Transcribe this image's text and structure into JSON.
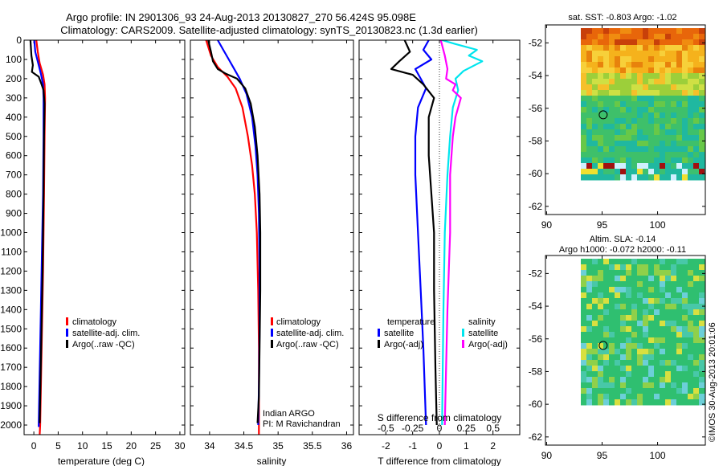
{
  "header": {
    "line1": "Argo profile: IN 2901306_93 24-Aug-2013 20130827_270 56.424S 95.098E",
    "line2": "Climatology: CARS2009. Satellite-adjusted climatology: synTS_20130823.nc (1.3d earlier)"
  },
  "colors": {
    "climatology": "#ff0000",
    "satellite": "#0000ff",
    "argo": "#000000",
    "sat_salinity": "#00e5ee",
    "argo_salinity": "#ff00ff"
  },
  "chart_data": [
    {
      "type": "line",
      "id": "temperature",
      "xlabel": "temperature (deg C)",
      "xticks": [
        0,
        5,
        10,
        15,
        20,
        25,
        30
      ],
      "xlim": [
        -2,
        31
      ],
      "yticks": [
        0,
        100,
        200,
        300,
        400,
        500,
        600,
        700,
        800,
        900,
        1000,
        1100,
        1200,
        1300,
        1400,
        1500,
        1600,
        1700,
        1800,
        1900,
        2000
      ],
      "ylim": [
        2050,
        0
      ],
      "legend": [
        "climatology",
        "satellite-adj. clim.",
        "Argo(..raw -QC)"
      ],
      "series": [
        {
          "name": "climatology",
          "color": "#ff0000",
          "points": [
            [
              0.5,
              0
            ],
            [
              0.8,
              60
            ],
            [
              1.2,
              120
            ],
            [
              1.9,
              180
            ],
            [
              2.2,
              230
            ],
            [
              2.3,
              300
            ],
            [
              2.2,
              500
            ],
            [
              2.1,
              800
            ],
            [
              1.9,
              1200
            ],
            [
              1.6,
              1600
            ],
            [
              1.3,
              2000
            ],
            [
              1.2,
              2050
            ]
          ]
        },
        {
          "name": "satellite-adj. clim.",
          "color": "#0000ff",
          "points": [
            [
              0.1,
              0
            ],
            [
              0.3,
              60
            ],
            [
              0.9,
              120
            ],
            [
              1.5,
              180
            ],
            [
              1.9,
              230
            ],
            [
              2.0,
              300
            ],
            [
              2.0,
              500
            ],
            [
              1.9,
              800
            ],
            [
              1.6,
              1200
            ],
            [
              1.3,
              1600
            ],
            [
              1.0,
              2000
            ],
            [
              1.0,
              2010
            ]
          ]
        },
        {
          "name": "Argo(..raw -QC)",
          "color": "#000000",
          "points": [
            [
              -0.7,
              0
            ],
            [
              -0.5,
              80
            ],
            [
              -0.2,
              130
            ],
            [
              -0.4,
              165
            ],
            [
              1.0,
              190
            ],
            [
              1.6,
              230
            ],
            [
              2.0,
              260
            ],
            [
              2.2,
              330
            ],
            [
              2.1,
              500
            ],
            [
              2.0,
              800
            ],
            [
              1.8,
              1200
            ],
            [
              1.5,
              1600
            ],
            [
              1.2,
              1990
            ]
          ]
        }
      ]
    },
    {
      "type": "line",
      "id": "salinity",
      "xlabel": "salinity",
      "xticks": [
        34,
        34.5,
        35,
        35.5,
        36
      ],
      "xlim": [
        33.72,
        36.1
      ],
      "ylim": [
        2050,
        0
      ],
      "legend": [
        "climatology",
        "satellite-adj. clim.",
        "Argo(..raw -QC)"
      ],
      "annotation": [
        "Indian ARGO",
        "PI: M Ravichandran"
      ],
      "series": [
        {
          "name": "climatology",
          "color": "#ff0000",
          "points": [
            [
              33.95,
              0
            ],
            [
              34.02,
              80
            ],
            [
              34.12,
              140
            ],
            [
              34.26,
              190
            ],
            [
              34.38,
              250
            ],
            [
              34.48,
              350
            ],
            [
              34.56,
              500
            ],
            [
              34.62,
              650
            ],
            [
              34.66,
              800
            ],
            [
              34.69,
              1000
            ],
            [
              34.71,
              1300
            ],
            [
              34.72,
              1600
            ],
            [
              34.72,
              2000
            ],
            [
              34.72,
              2050
            ]
          ]
        },
        {
          "name": "satellite-adj. clim.",
          "color": "#0000ff",
          "points": [
            [
              34.12,
              0
            ],
            [
              34.2,
              50
            ],
            [
              34.28,
              100
            ],
            [
              34.36,
              150
            ],
            [
              34.44,
              200
            ],
            [
              34.54,
              280
            ],
            [
              34.62,
              400
            ],
            [
              34.67,
              550
            ],
            [
              34.7,
              700
            ],
            [
              34.72,
              900
            ],
            [
              34.73,
              1200
            ],
            [
              34.73,
              1500
            ],
            [
              34.72,
              1800
            ],
            [
              34.71,
              2000
            ]
          ]
        },
        {
          "name": "Argo(..raw -QC)",
          "color": "#000000",
          "points": [
            [
              33.98,
              0
            ],
            [
              34.02,
              60
            ],
            [
              34.05,
              110
            ],
            [
              34.12,
              150
            ],
            [
              34.24,
              175
            ],
            [
              34.4,
              200
            ],
            [
              34.52,
              250
            ],
            [
              34.6,
              330
            ],
            [
              34.66,
              450
            ],
            [
              34.7,
              600
            ],
            [
              34.73,
              800
            ],
            [
              34.74,
              1000
            ],
            [
              34.74,
              1300
            ],
            [
              34.73,
              1600
            ],
            [
              34.72,
              1850
            ],
            [
              34.7,
              1990
            ]
          ]
        }
      ]
    },
    {
      "type": "line",
      "id": "difference",
      "xlabel": "T difference from climatology",
      "xlabel_top": "S difference from climatology",
      "xticks": [
        -2,
        -1,
        0,
        1,
        2
      ],
      "xticks_s": [
        -0.5,
        -0.25,
        0,
        0.25,
        0.5
      ],
      "xlim": [
        -3,
        3
      ],
      "ylim": [
        2050,
        0
      ],
      "legend_groups": {
        "temperature": [
          "satellite",
          "Argo(-adj)"
        ],
        "salinity": [
          "satellite",
          "Argo(-adj)"
        ]
      },
      "series": [
        {
          "name": "temperature satellite",
          "color": "#0000ff",
          "points": [
            [
              -0.4,
              0
            ],
            [
              -0.6,
              50
            ],
            [
              -0.3,
              100
            ],
            [
              -0.9,
              150
            ],
            [
              -0.7,
              200
            ],
            [
              -0.5,
              250
            ],
            [
              -0.8,
              350
            ],
            [
              -0.9,
              500
            ],
            [
              -0.9,
              700
            ],
            [
              -0.8,
              1000
            ],
            [
              -0.7,
              1300
            ],
            [
              -0.6,
              1600
            ],
            [
              -0.5,
              2000
            ]
          ]
        },
        {
          "name": "temperature Argo(-adj)",
          "color": "#000000",
          "points": [
            [
              -1.3,
              0
            ],
            [
              -1.1,
              60
            ],
            [
              -1.5,
              110
            ],
            [
              -1.8,
              150
            ],
            [
              -1.0,
              180
            ],
            [
              -0.6,
              230
            ],
            [
              -0.2,
              300
            ],
            [
              -0.4,
              400
            ],
            [
              -0.4,
              600
            ],
            [
              -0.3,
              800
            ],
            [
              -0.2,
              1000
            ],
            [
              -0.2,
              1300
            ],
            [
              -0.15,
              1700
            ],
            [
              -0.1,
              2000
            ]
          ]
        },
        {
          "name": "salinity satellite",
          "color": "#00e5ee",
          "points": [
            [
              0.1,
              0
            ],
            [
              0.6,
              20
            ],
            [
              1.4,
              50
            ],
            [
              1.1,
              80
            ],
            [
              1.6,
              110
            ],
            [
              0.9,
              160
            ],
            [
              0.6,
              200
            ],
            [
              0.7,
              260
            ],
            [
              0.5,
              350
            ],
            [
              0.4,
              500
            ],
            [
              0.3,
              700
            ],
            [
              0.2,
              1000
            ],
            [
              0.15,
              1400
            ],
            [
              0.1,
              2000
            ]
          ]
        },
        {
          "name": "salinity Argo(-adj)",
          "color": "#ff00ff",
          "points": [
            [
              0.05,
              0
            ],
            [
              0.2,
              80
            ],
            [
              0.3,
              150
            ],
            [
              0.25,
              200
            ],
            [
              0.6,
              230
            ],
            [
              0.5,
              260
            ],
            [
              0.8,
              300
            ],
            [
              0.6,
              400
            ],
            [
              0.5,
              500
            ],
            [
              0.4,
              700
            ],
            [
              0.4,
              1000
            ],
            [
              0.3,
              1400
            ],
            [
              0.25,
              1700
            ],
            [
              0.2,
              2000
            ]
          ]
        }
      ]
    }
  ],
  "maps": {
    "sst": {
      "title": "sat. SST: -0.803 Argo: -1.02",
      "xticks": [
        90,
        95,
        100
      ],
      "yticks": [
        -52,
        -54,
        -56,
        -58,
        -60,
        -62
      ],
      "argo_lon": 95.1,
      "argo_lat": -56.4
    },
    "sla": {
      "title1": "Altim. SLA: -0.14",
      "title2": "Argo h1000: -0.072 h2000: -0.11",
      "xticks": [
        90,
        95,
        100
      ],
      "yticks": [
        -52,
        -54,
        -56,
        -58,
        -60,
        -62
      ],
      "argo_lon": 95.1,
      "argo_lat": -56.4
    }
  },
  "footer": {
    "stamp": "©IMOS 30-Aug-2013 20:01:06"
  }
}
